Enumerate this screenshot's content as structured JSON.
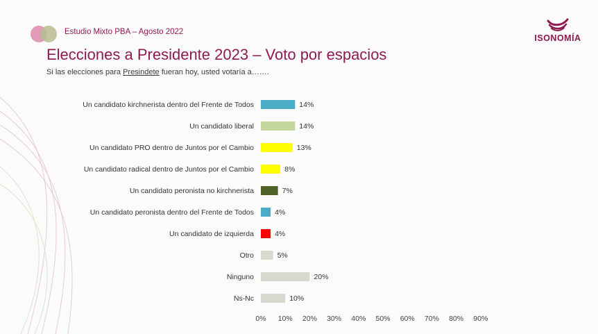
{
  "header": {
    "study": "Estudio Mixto PBA – Agosto 2022",
    "brand": "ISONOMÍA",
    "title": "Elecciones a Presidente 2023 – Voto por espacios",
    "subtitle_before": "Si las elecciones para ",
    "subtitle_underlined": "Presindete",
    "subtitle_after": " fueran hoy, usted votaría a……."
  },
  "colors": {
    "accent": "#8e1a52",
    "circle_left": "#d98aac",
    "circle_right": "#b7bd92"
  },
  "chart_data": {
    "type": "bar",
    "orientation": "horizontal",
    "categories": [
      "Un candidato kirchnerista dentro del Frente de Todos",
      "Un candidato liberal",
      "Un candidato PRO dentro de Juntos por el Cambio",
      "Un candidato radical dentro de Juntos por el Cambio",
      "Un candidato peronista no kirchnerista",
      "Un candidato peronista dentro del Frente de Todos",
      "Un candidato de izquierda",
      "Otro",
      "Ninguno",
      "Ns-Nc"
    ],
    "values": [
      14,
      14,
      13,
      8,
      7,
      4,
      4,
      5,
      20,
      10
    ],
    "value_labels": [
      "14%",
      "14%",
      "13%",
      "8%",
      "7%",
      "4%",
      "4%",
      "5%",
      "20%",
      "10%"
    ],
    "bar_colors": [
      "#4bacc6",
      "#c3d69b",
      "#ffff00",
      "#ffff00",
      "#4f6228",
      "#4bacc6",
      "#ff0000",
      "#d8d8cf",
      "#d8d8cf",
      "#d8d8cf"
    ],
    "xlim": [
      0,
      90
    ],
    "xticks": [
      "0%",
      "10%",
      "20%",
      "30%",
      "40%",
      "50%",
      "60%",
      "70%",
      "80%",
      "90%"
    ],
    "grid": false,
    "legend": "none"
  }
}
